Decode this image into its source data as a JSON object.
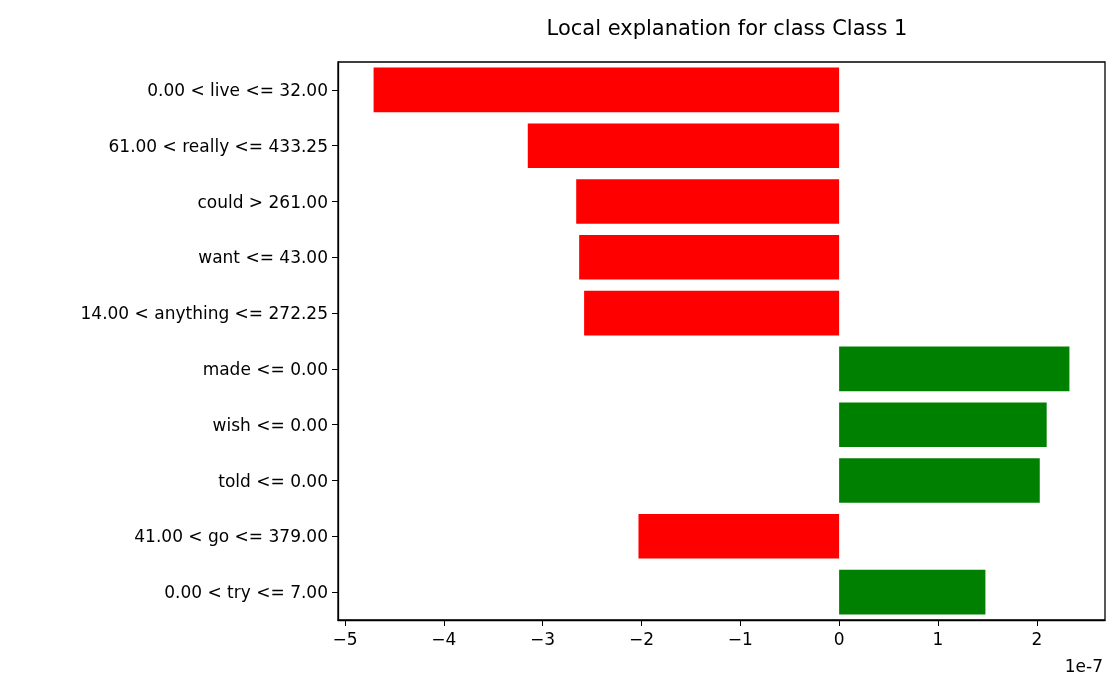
{
  "chart_data": {
    "type": "bar",
    "orientation": "horizontal",
    "title": "Local explanation for class Class 1",
    "categories": [
      "0.00 < live <= 32.00",
      "61.00 < really <= 433.25",
      "could > 261.00",
      "want <= 43.00",
      "14.00 < anything <= 272.25",
      "made <= 0.00",
      "wish <= 0.00",
      "told <= 0.00",
      "41.00 < go <= 379.00",
      "0.00 < try <= 7.00"
    ],
    "values": [
      -4.71,
      -3.15,
      -2.66,
      -2.63,
      -2.58,
      2.33,
      2.1,
      2.03,
      -2.03,
      1.48
    ],
    "colors": [
      "#ff0000",
      "#ff0000",
      "#ff0000",
      "#ff0000",
      "#ff0000",
      "#008000",
      "#008000",
      "#008000",
      "#ff0000",
      "#008000"
    ],
    "xlim": [
      -5.07,
      2.69
    ],
    "xticks": [
      -5,
      -4,
      -3,
      -2,
      -1,
      0,
      1,
      2
    ],
    "annotations": [
      "1e-7"
    ]
  }
}
